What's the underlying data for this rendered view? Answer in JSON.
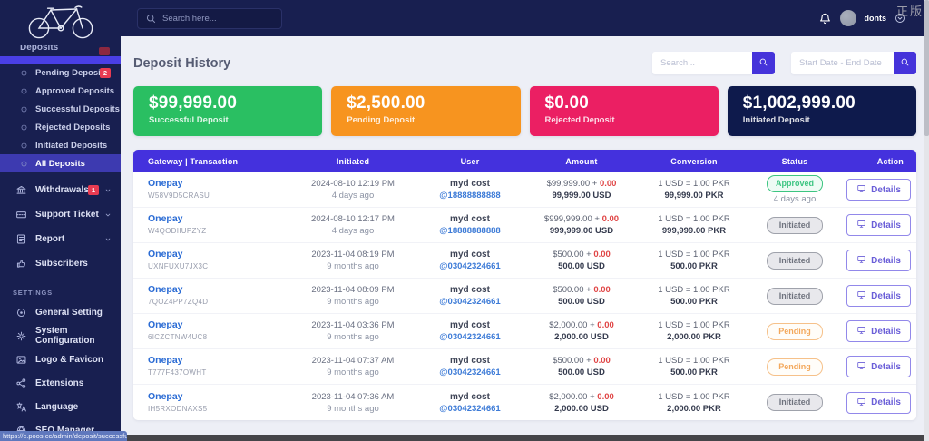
{
  "watermark": "正版",
  "statusbar_url": "https://c.poos.cc/admin/deposit/successful",
  "topbar": {
    "search_placeholder": "Search here...",
    "username": "donts"
  },
  "page": {
    "title": "Deposit History"
  },
  "filters": {
    "search_placeholder": "Search...",
    "date_placeholder": "Start Date - End Date"
  },
  "cards": [
    {
      "amount": "$99,999.00",
      "label": "Successful Deposit",
      "color": "#2abf62"
    },
    {
      "amount": "$2,500.00",
      "label": "Pending Deposit",
      "color": "#f7941f"
    },
    {
      "amount": "$0.00",
      "label": "Rejected Deposit",
      "color": "#eb1f63"
    },
    {
      "amount": "$1,002,999.00",
      "label": "Initiated Deposit",
      "color": "#0e1a4c"
    }
  ],
  "sidebar": {
    "parent_item": {
      "label": "Deposits"
    },
    "deposit_items": [
      {
        "label": "Pending Deposits",
        "badge": "2",
        "active": false
      },
      {
        "label": "Approved Deposits",
        "active": false
      },
      {
        "label": "Successful Deposits",
        "active": false
      },
      {
        "label": "Rejected Deposits",
        "active": false
      },
      {
        "label": "Initiated Deposits",
        "active": false
      },
      {
        "label": "All Deposits",
        "active": true
      }
    ],
    "main_items": [
      {
        "label": "Withdrawals",
        "icon": "bank",
        "badge": "1",
        "caret": true
      },
      {
        "label": "Support Ticket",
        "icon": "ticket",
        "caret": true
      },
      {
        "label": "Report",
        "icon": "report",
        "caret": true
      },
      {
        "label": "Subscribers",
        "icon": "thumbs-up",
        "caret": false
      }
    ],
    "section_label": "SETTINGS",
    "settings_items": [
      {
        "label": "General Setting",
        "icon": "target"
      },
      {
        "label": "System Configuration",
        "icon": "gear"
      },
      {
        "label": "Logo & Favicon",
        "icon": "image"
      },
      {
        "label": "Extensions",
        "icon": "share"
      },
      {
        "label": "Language",
        "icon": "language"
      },
      {
        "label": "SEO Manager",
        "icon": "globe"
      }
    ]
  },
  "table": {
    "columns": [
      "Gateway | Transaction",
      "Initiated",
      "User",
      "Amount",
      "Conversion",
      "Status",
      "Action"
    ],
    "details_label": "Details",
    "rows": [
      {
        "gateway": "Onepay",
        "trx": "W58V9D5CRASU",
        "date": "2024-08-10 12:19 PM",
        "ago": "4 days ago",
        "user": "myd cost",
        "handle": "@18888888888",
        "amount": "$99,999.00 +",
        "charge": "0.00",
        "total": "99,999.00 USD",
        "rate": "1 USD = 1.00 PKR",
        "converted": "99,999.00 PKR",
        "status": "Approved",
        "status_type": "approved",
        "status_ago": "4 days ago"
      },
      {
        "gateway": "Onepay",
        "trx": "W4QODIIUPZYZ",
        "date": "2024-08-10 12:17 PM",
        "ago": "4 days ago",
        "user": "myd cost",
        "handle": "@18888888888",
        "amount": "$999,999.00 +",
        "charge": "0.00",
        "total": "999,999.00 USD",
        "rate": "1 USD = 1.00 PKR",
        "converted": "999,999.00 PKR",
        "status": "Initiated",
        "status_type": "initiated",
        "status_ago": ""
      },
      {
        "gateway": "Onepay",
        "trx": "UXNFUXU7JX3C",
        "date": "2023-11-04 08:19 PM",
        "ago": "9 months ago",
        "user": "myd cost",
        "handle": "@03042324661",
        "amount": "$500.00 +",
        "charge": "0.00",
        "total": "500.00 USD",
        "rate": "1 USD = 1.00 PKR",
        "converted": "500.00 PKR",
        "status": "Initiated",
        "status_type": "initiated",
        "status_ago": ""
      },
      {
        "gateway": "Onepay",
        "trx": "7QOZ4PP7ZQ4D",
        "date": "2023-11-04 08:09 PM",
        "ago": "9 months ago",
        "user": "myd cost",
        "handle": "@03042324661",
        "amount": "$500.00 +",
        "charge": "0.00",
        "total": "500.00 USD",
        "rate": "1 USD = 1.00 PKR",
        "converted": "500.00 PKR",
        "status": "Initiated",
        "status_type": "initiated",
        "status_ago": ""
      },
      {
        "gateway": "Onepay",
        "trx": "6ICZCTNW4UC8",
        "date": "2023-11-04 03:36 PM",
        "ago": "9 months ago",
        "user": "myd cost",
        "handle": "@03042324661",
        "amount": "$2,000.00 +",
        "charge": "0.00",
        "total": "2,000.00 USD",
        "rate": "1 USD = 1.00 PKR",
        "converted": "2,000.00 PKR",
        "status": "Pending",
        "status_type": "pending",
        "status_ago": ""
      },
      {
        "gateway": "Onepay",
        "trx": "T777F437OWHT",
        "date": "2023-11-04 07:37 AM",
        "ago": "9 months ago",
        "user": "myd cost",
        "handle": "@03042324661",
        "amount": "$500.00 +",
        "charge": "0.00",
        "total": "500.00 USD",
        "rate": "1 USD = 1.00 PKR",
        "converted": "500.00 PKR",
        "status": "Pending",
        "status_type": "pending",
        "status_ago": ""
      },
      {
        "gateway": "Onepay",
        "trx": "IH5RXODNAXS5",
        "date": "2023-11-04 07:36 AM",
        "ago": "9 months ago",
        "user": "myd cost",
        "handle": "@03042324661",
        "amount": "$2,000.00 +",
        "charge": "0.00",
        "total": "2,000.00 USD",
        "rate": "1 USD = 1.00 PKR",
        "converted": "2,000.00 PKR",
        "status": "Initiated",
        "status_type": "initiated",
        "status_ago": ""
      }
    ]
  }
}
